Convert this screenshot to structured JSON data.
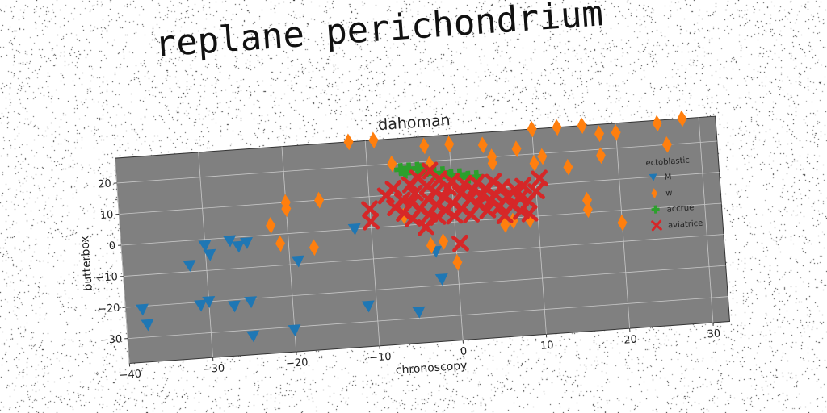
{
  "suptitle": "replane perichondrium",
  "chart_data": {
    "type": "scatter",
    "title": "dahoman",
    "xlabel": "chronoscopy",
    "ylabel": "butterbox",
    "xlim": [
      -40,
      32
    ],
    "ylim": [
      -38,
      28
    ],
    "xticks": [
      -40,
      -30,
      -20,
      -10,
      0,
      10,
      20,
      30
    ],
    "yticks": [
      -30,
      -20,
      -10,
      0,
      10,
      20
    ],
    "grid": true,
    "background": "#808080",
    "legend": {
      "title": "ectoblastic",
      "placement": "right"
    },
    "series": [
      {
        "name": "M",
        "marker": "triangle-down",
        "color": "#1f77b4",
        "points": [
          [
            -38,
            -21
          ],
          [
            -37.5,
            -26
          ],
          [
            -32,
            -8
          ],
          [
            -31,
            -21
          ],
          [
            -30,
            -2
          ],
          [
            -29.5,
            -5
          ],
          [
            -30,
            -20
          ],
          [
            -27,
            -22
          ],
          [
            -27,
            -1
          ],
          [
            -26,
            -3
          ],
          [
            -25,
            -2
          ],
          [
            -25,
            -21
          ],
          [
            -25,
            -32
          ],
          [
            -19,
            -9
          ],
          [
            -20,
            -31
          ],
          [
            -12,
            0
          ],
          [
            -11,
            -25
          ],
          [
            -5,
            -28
          ],
          [
            -2,
            -18
          ],
          [
            -2.5,
            -9
          ]
        ]
      },
      {
        "name": "w",
        "marker": "diamond",
        "color": "#ff7f0e",
        "points": [
          [
            -22,
            3
          ],
          [
            -21,
            -3
          ],
          [
            -20,
            10
          ],
          [
            -20,
            8
          ],
          [
            -17,
            -5
          ],
          [
            -16,
            10
          ],
          [
            -12,
            28
          ],
          [
            -9,
            28
          ],
          [
            -7,
            20
          ],
          [
            -6,
            3
          ],
          [
            -3,
            25
          ],
          [
            -3,
            -7
          ],
          [
            -2.5,
            19
          ],
          [
            -1.5,
            -6
          ],
          [
            0,
            25
          ],
          [
            0,
            -13
          ],
          [
            4,
            24
          ],
          [
            5,
            20
          ],
          [
            5,
            18
          ],
          [
            6,
            -2
          ],
          [
            7,
            -1
          ],
          [
            8,
            22
          ],
          [
            9,
            -1
          ],
          [
            10,
            28
          ],
          [
            10,
            17
          ],
          [
            11,
            19
          ],
          [
            13,
            28
          ],
          [
            14,
            15
          ],
          [
            16,
            33
          ],
          [
            16,
            1
          ],
          [
            16,
            4
          ],
          [
            18,
            25
          ],
          [
            18,
            18
          ],
          [
            20,
            25
          ],
          [
            20,
            -4
          ],
          [
            25,
            27
          ],
          [
            26,
            20
          ],
          [
            28,
            31
          ]
        ]
      },
      {
        "name": "accrue",
        "marker": "plus",
        "color": "#2ca02c",
        "points": [
          [
            -6,
            18
          ],
          [
            -5,
            18
          ],
          [
            -4,
            18
          ],
          [
            -3,
            17
          ],
          [
            -2,
            16
          ],
          [
            -1,
            16
          ],
          [
            0,
            15
          ],
          [
            1,
            15
          ],
          [
            2,
            14
          ],
          [
            3,
            14
          ],
          [
            -5.5,
            17
          ],
          [
            -3.5,
            17.5
          ]
        ]
      },
      {
        "name": "aviatrice",
        "marker": "x",
        "color": "#d62728",
        "points": [
          [
            -10,
            6
          ],
          [
            -10,
            2
          ],
          [
            -8,
            10
          ],
          [
            -7,
            12
          ],
          [
            -7,
            6
          ],
          [
            -6,
            8
          ],
          [
            -6,
            4
          ],
          [
            -5,
            13
          ],
          [
            -5,
            7
          ],
          [
            -5,
            2
          ],
          [
            -4.5,
            10
          ],
          [
            -4,
            15
          ],
          [
            -4,
            5
          ],
          [
            -3.5,
            -1
          ],
          [
            -3,
            12
          ],
          [
            -3,
            8
          ],
          [
            -3,
            3
          ],
          [
            -2.5,
            17
          ],
          [
            -2,
            10
          ],
          [
            -2,
            6
          ],
          [
            -2,
            2
          ],
          [
            -1.5,
            14
          ],
          [
            -1,
            8
          ],
          [
            -1,
            4
          ],
          [
            -0.5,
            11
          ],
          [
            0,
            13
          ],
          [
            0,
            6
          ],
          [
            0,
            2
          ],
          [
            0.5,
            -7
          ],
          [
            1,
            9
          ],
          [
            1,
            4
          ],
          [
            1.5,
            12
          ],
          [
            2,
            7
          ],
          [
            2,
            2
          ],
          [
            2.5,
            10
          ],
          [
            3,
            5
          ],
          [
            3,
            12
          ],
          [
            3.5,
            8
          ],
          [
            4,
            3
          ],
          [
            4,
            10
          ],
          [
            4.5,
            6
          ],
          [
            5,
            12
          ],
          [
            5,
            8
          ],
          [
            5.5,
            4
          ],
          [
            6,
            10
          ],
          [
            6,
            1
          ],
          [
            6.5,
            7
          ],
          [
            7,
            4
          ],
          [
            7.5,
            9
          ],
          [
            8,
            2
          ],
          [
            8,
            6
          ],
          [
            8.5,
            10
          ],
          [
            9,
            5
          ],
          [
            9,
            1
          ],
          [
            10,
            8
          ],
          [
            10.5,
            12
          ]
        ]
      }
    ]
  }
}
